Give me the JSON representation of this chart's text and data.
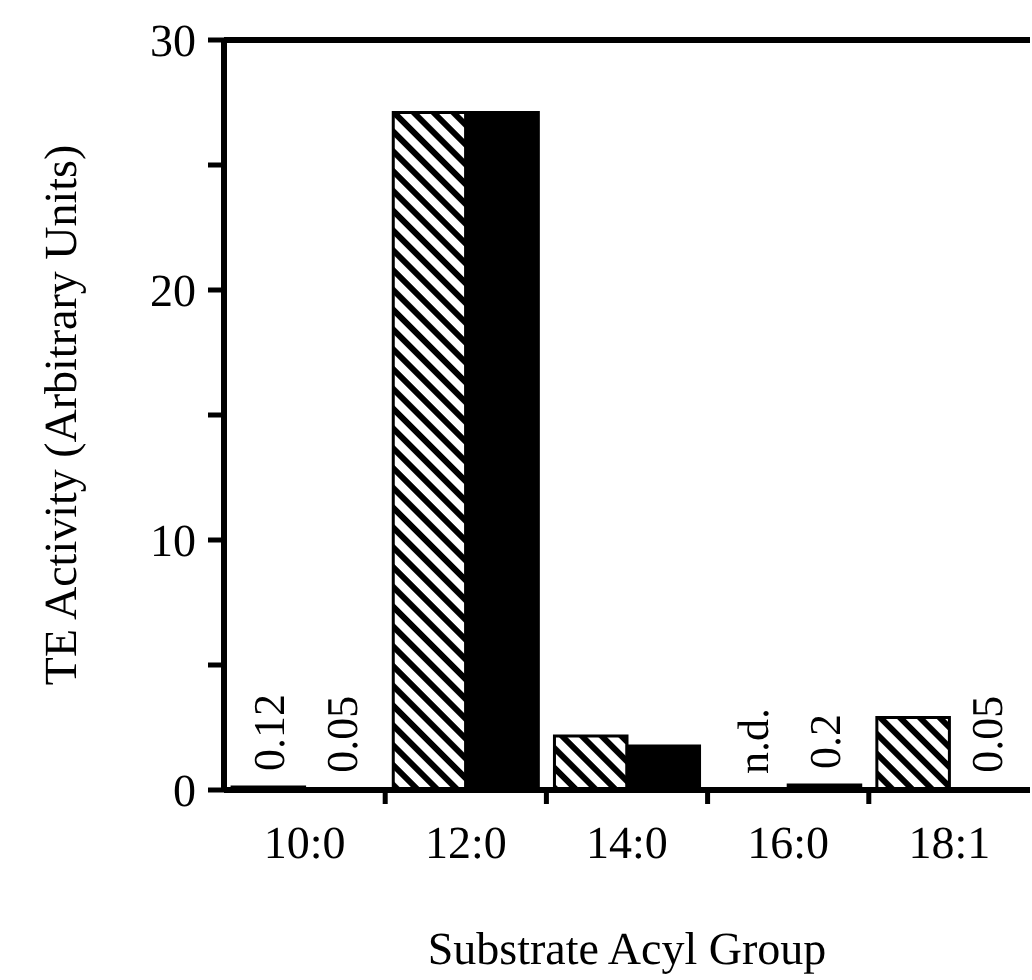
{
  "chart_data": {
    "type": "bar",
    "xlabel": "Substrate Acyl Group",
    "ylabel": "TE Activity (Arbitrary Units)",
    "categories": [
      "10:0",
      "12:0",
      "14:0",
      "16:0",
      "18:1"
    ],
    "series": [
      {
        "color": "#000000",
        "values": [
          0.12,
          27.1,
          2.16,
          null,
          2.9
        ],
        "value_labels": [
          "0.12",
          null,
          null,
          "n.d.",
          null
        ]
      },
      {
        "color": "#000000",
        "values": [
          0.05,
          27.1,
          1.76,
          0.2,
          0.05
        ],
        "value_labels": [
          "0.05",
          null,
          null,
          "0.2",
          "0.05"
        ]
      }
    ],
    "ylim": [
      0,
      30
    ],
    "yticks": [
      0,
      {
        "value": 5,
        "label": null
      },
      10,
      {
        "value": 15,
        "label": null
      },
      20,
      {
        "value": 25,
        "label": null
      },
      30
    ],
    "grid": false
  }
}
